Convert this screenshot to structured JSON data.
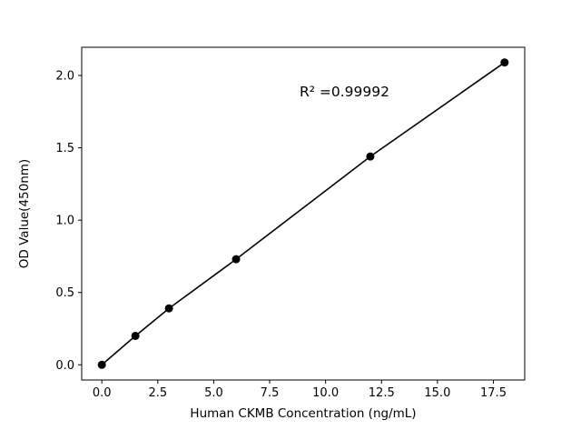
{
  "chart_data": {
    "type": "line",
    "title": "",
    "xlabel": "Human CKMB Concentration (ng/mL)",
    "ylabel": "OD Value(450nm)",
    "annotation": "R² =0.99992",
    "x": [
      0,
      1.5,
      3,
      6,
      12,
      18
    ],
    "y": [
      0.0,
      0.2,
      0.39,
      0.73,
      1.44,
      2.09
    ],
    "xlim": [
      -0.9,
      18.9
    ],
    "ylim": [
      -0.105,
      2.195
    ],
    "xticks": [
      0.0,
      2.5,
      5.0,
      7.5,
      10.0,
      12.5,
      15.0,
      17.5
    ],
    "xtick_labels": [
      "0.0",
      "2.5",
      "5.0",
      "7.5",
      "10.0",
      "12.5",
      "15.0",
      "17.5"
    ],
    "yticks": [
      0.0,
      0.5,
      1.0,
      1.5,
      2.0
    ],
    "ytick_labels": [
      "0.0",
      "0.5",
      "1.0",
      "1.5",
      "2.0"
    ],
    "grid": false,
    "legend": false,
    "line_color": "#000000",
    "marker_color": "#000000",
    "background_color": "#ffffff"
  }
}
